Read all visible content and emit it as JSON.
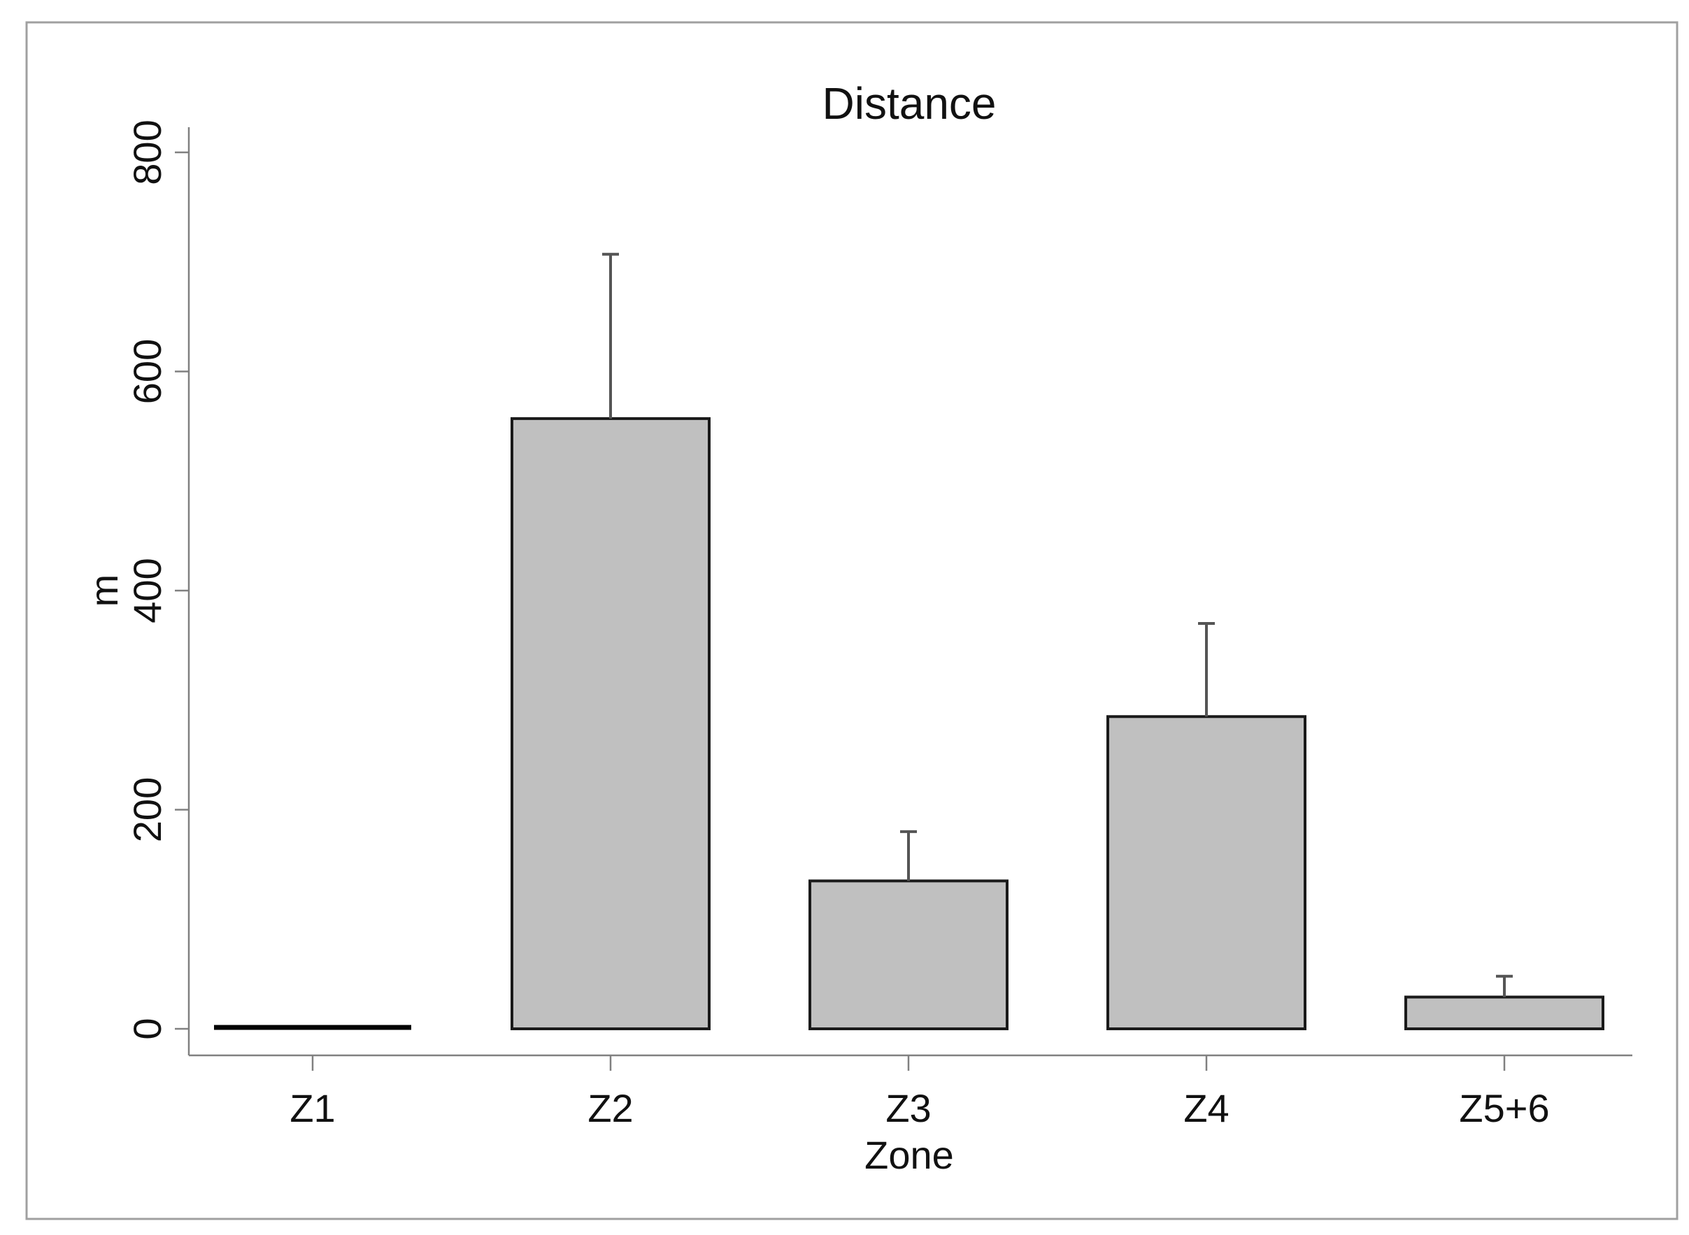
{
  "chart_data": {
    "type": "bar",
    "title": "Distance",
    "xlabel": "Zone",
    "ylabel": "m",
    "categories": [
      "Z1",
      "Z2",
      "Z3",
      "Z4",
      "Z5+6"
    ],
    "values": [
      2,
      557,
      135,
      285,
      29
    ],
    "error_upper": [
      2,
      707,
      180,
      370,
      48
    ],
    "ylim": [
      0,
      800
    ],
    "yticks": [
      0,
      200,
      400,
      600,
      800
    ],
    "grid": false,
    "legend": "none",
    "colors": {
      "bar_fill": "#c0c0c0",
      "bar_edge": "#1a1a1a",
      "axis": "#808080",
      "error_bar": "#555555",
      "frame": "#a0a0a0"
    }
  }
}
